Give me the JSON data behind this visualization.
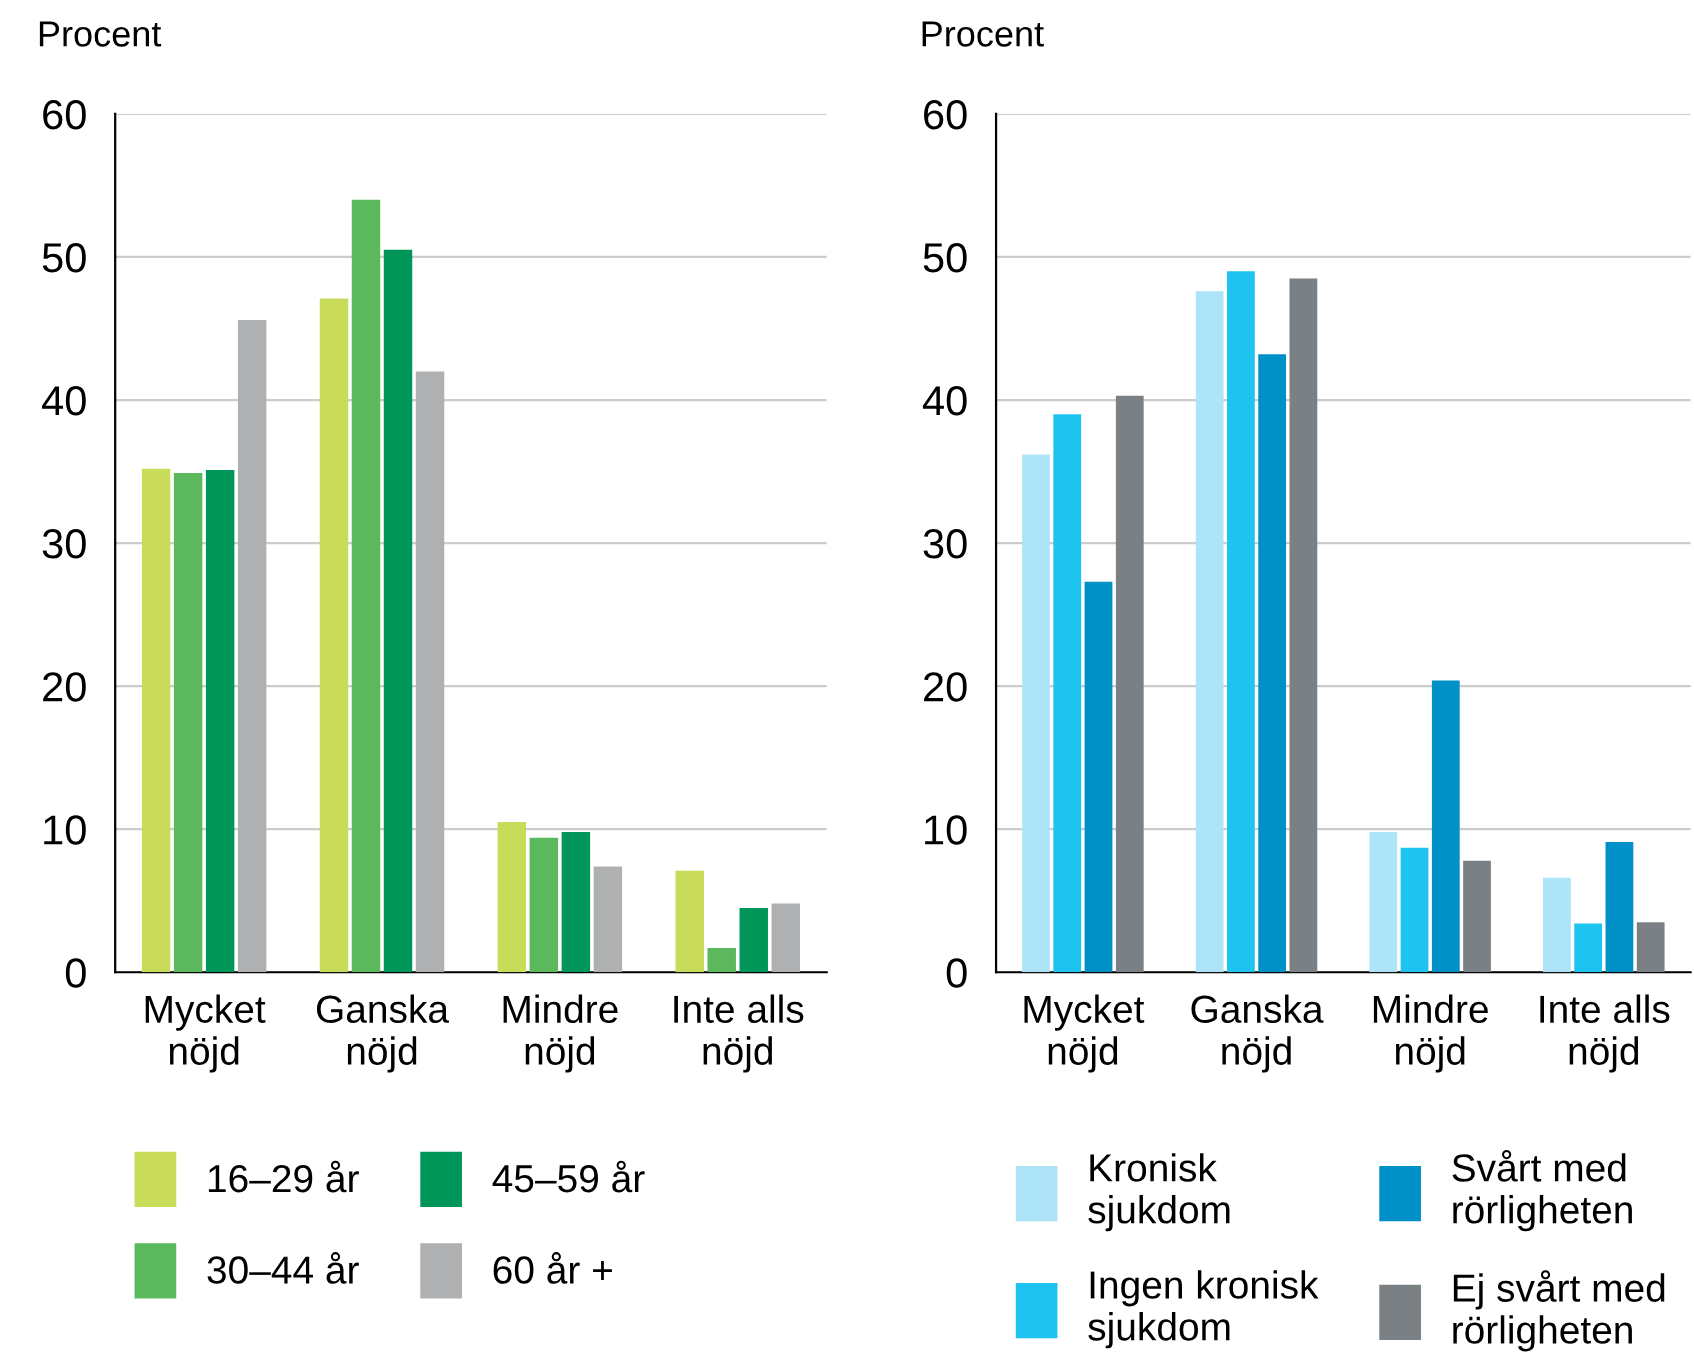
{
  "chart_data": [
    {
      "type": "bar",
      "ylabel": "Procent",
      "categories": [
        "Mycket\nnöjd",
        "Ganska\nnöjd",
        "Mindre\nnöjd",
        "Inte alls\nnöjd"
      ],
      "ylim": [
        0,
        60
      ],
      "yticks": [
        0,
        10,
        20,
        30,
        40,
        50,
        60
      ],
      "grid": "y",
      "legend": "bottom",
      "series": [
        {
          "name": "16–29 år",
          "color": "#c8dc5a",
          "values": [
            35.2,
            47.1,
            10.5,
            7.1
          ]
        },
        {
          "name": "30–44 år",
          "color": "#5cb85c",
          "values": [
            34.9,
            54.0,
            9.4,
            1.7
          ]
        },
        {
          "name": "45–59 år",
          "color": "#00965a",
          "values": [
            35.1,
            50.5,
            9.8,
            4.5
          ]
        },
        {
          "name": "60 år +",
          "color": "#aeb0b2",
          "values": [
            45.6,
            42.0,
            7.4,
            4.8
          ]
        }
      ]
    },
    {
      "type": "bar",
      "ylabel": "Procent",
      "categories": [
        "Mycket\nnöjd",
        "Ganska\nnöjd",
        "Mindre\nnöjd",
        "Inte alls\nnöjd"
      ],
      "ylim": [
        0,
        60
      ],
      "yticks": [
        0,
        10,
        20,
        30,
        40,
        50,
        60
      ],
      "grid": "y",
      "legend": "bottom",
      "series": [
        {
          "name": "Kronisk\nsjukdom",
          "color": "#aee4f8",
          "values": [
            36.2,
            47.6,
            9.8,
            6.6
          ]
        },
        {
          "name": "Ingen kronisk\nsjukdom",
          "color": "#1ec3f0",
          "values": [
            39.0,
            49.0,
            8.7,
            3.4
          ]
        },
        {
          "name": "Svårt med\nrörligheten",
          "color": "#0090c8",
          "values": [
            27.3,
            43.2,
            20.4,
            9.1
          ]
        },
        {
          "name": "Ej svårt med\nrörligheten",
          "color": "#7a8084",
          "values": [
            40.3,
            48.5,
            7.8,
            3.5
          ]
        }
      ]
    }
  ]
}
